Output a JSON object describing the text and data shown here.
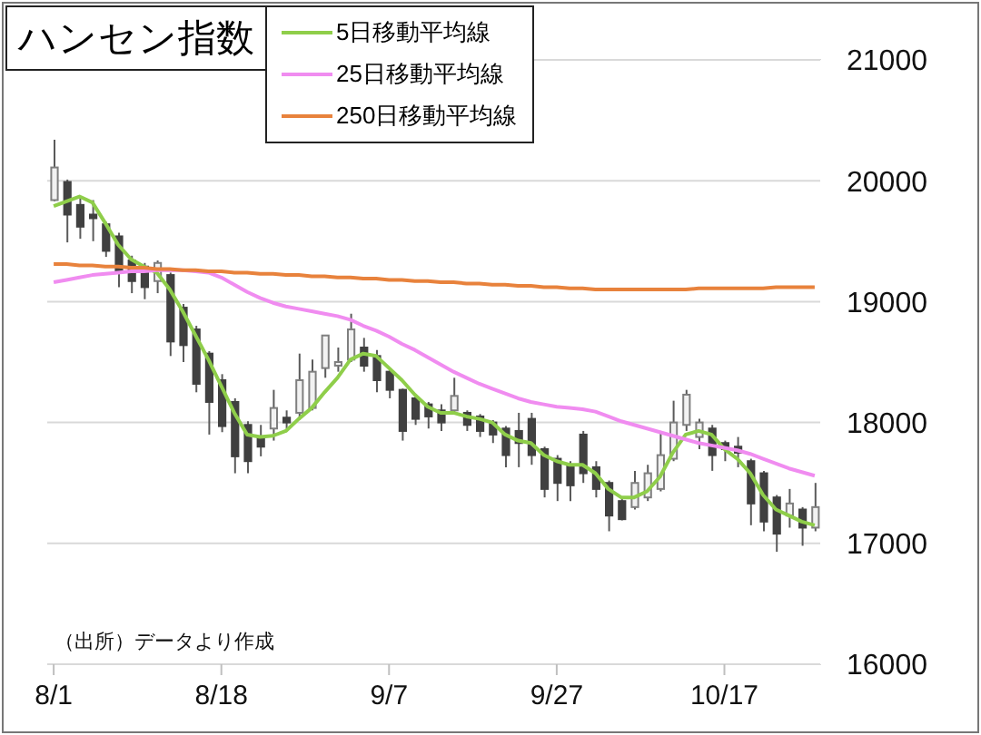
{
  "chart_data": {
    "type": "candlestick",
    "title": "ハンセン指数",
    "categories": [
      "8/1",
      null,
      null,
      null,
      null,
      null,
      null,
      null,
      null,
      null,
      null,
      null,
      null,
      "8/18",
      null,
      null,
      null,
      null,
      null,
      null,
      null,
      null,
      null,
      null,
      null,
      null,
      "9/7",
      null,
      null,
      null,
      null,
      null,
      null,
      null,
      null,
      null,
      null,
      null,
      null,
      "9/27",
      null,
      null,
      null,
      null,
      null,
      null,
      null,
      null,
      null,
      null,
      null,
      null,
      "10/17",
      null,
      null,
      null,
      null,
      null,
      null,
      null
    ],
    "ohlc": [
      [
        19840,
        20340,
        19830,
        20110
      ],
      [
        19990,
        20010,
        19490,
        19720
      ],
      [
        19800,
        19870,
        19520,
        19620
      ],
      [
        19720,
        19840,
        19500,
        19690
      ],
      [
        19640,
        19660,
        19370,
        19420
      ],
      [
        19540,
        19570,
        19120,
        19240
      ],
      [
        19340,
        19380,
        19070,
        19170
      ],
      [
        19290,
        19320,
        19020,
        19120
      ],
      [
        19170,
        19340,
        19070,
        19320
      ],
      [
        19220,
        19240,
        18550,
        18670
      ],
      [
        18950,
        18980,
        18500,
        18640
      ],
      [
        18770,
        18800,
        18250,
        18320
      ],
      [
        18570,
        18590,
        17900,
        18170
      ],
      [
        18350,
        18400,
        17920,
        17970
      ],
      [
        18170,
        18200,
        17580,
        17720
      ],
      [
        17980,
        18010,
        17580,
        17680
      ],
      [
        17880,
        17980,
        17720,
        17800
      ],
      [
        17950,
        18270,
        17850,
        18120
      ],
      [
        18040,
        18100,
        17950,
        18000
      ],
      [
        18080,
        18570,
        18020,
        18350
      ],
      [
        18120,
        18520,
        18100,
        18420
      ],
      [
        18450,
        18720,
        18370,
        18720
      ],
      [
        18470,
        18620,
        18420,
        18500
      ],
      [
        18520,
        18900,
        18500,
        18770
      ],
      [
        18620,
        18700,
        18420,
        18470
      ],
      [
        18550,
        18600,
        18250,
        18350
      ],
      [
        18420,
        18450,
        18200,
        18270
      ],
      [
        18270,
        18280,
        17850,
        17930
      ],
      [
        18200,
        18220,
        17980,
        18030
      ],
      [
        18150,
        18170,
        17950,
        18050
      ],
      [
        18100,
        18150,
        17930,
        18000
      ],
      [
        18100,
        18370,
        18080,
        18220
      ],
      [
        18080,
        18100,
        17930,
        17980
      ],
      [
        18050,
        18070,
        17880,
        17930
      ],
      [
        18000,
        18020,
        17830,
        17900
      ],
      [
        17950,
        17970,
        17630,
        17730
      ],
      [
        17930,
        18080,
        17630,
        17830
      ],
      [
        18030,
        18080,
        17650,
        17730
      ],
      [
        17780,
        17800,
        17380,
        17450
      ],
      [
        17700,
        17730,
        17350,
        17500
      ],
      [
        17650,
        17680,
        17350,
        17480
      ],
      [
        17900,
        17930,
        17500,
        17580
      ],
      [
        17630,
        17680,
        17380,
        17450
      ],
      [
        17500,
        17520,
        17100,
        17230
      ],
      [
        17350,
        17380,
        17190,
        17200
      ],
      [
        17300,
        17600,
        17280,
        17500
      ],
      [
        17380,
        17650,
        17350,
        17580
      ],
      [
        17450,
        17930,
        17430,
        17730
      ],
      [
        17700,
        18180,
        17680,
        18000
      ],
      [
        17980,
        18270,
        17930,
        18230
      ],
      [
        17880,
        18030,
        17780,
        18000
      ],
      [
        17950,
        17980,
        17600,
        17730
      ],
      [
        17830,
        17850,
        17680,
        17780
      ],
      [
        17800,
        17880,
        17630,
        17750
      ],
      [
        17680,
        17700,
        17150,
        17330
      ],
      [
        17580,
        17600,
        17100,
        17180
      ],
      [
        17380,
        17400,
        16930,
        17080
      ],
      [
        17230,
        17450,
        17130,
        17330
      ],
      [
        17280,
        17300,
        16980,
        17130
      ],
      [
        17130,
        17500,
        17100,
        17300
      ]
    ],
    "series": [
      {
        "name": "5日移動平均線",
        "type": "line",
        "color": "#8fce4a",
        "values": [
          19790,
          19830,
          19870,
          19820,
          19650,
          19470,
          19350,
          19290,
          19240,
          19100,
          18920,
          18720,
          18520,
          18300,
          18080,
          17900,
          17880,
          17890,
          17930,
          18030,
          18120,
          18250,
          18370,
          18520,
          18570,
          18550,
          18450,
          18350,
          18230,
          18130,
          18080,
          18080,
          18050,
          18030,
          18000,
          17900,
          17850,
          17830,
          17730,
          17680,
          17650,
          17650,
          17580,
          17450,
          17380,
          17380,
          17430,
          17550,
          17750,
          17900,
          17930,
          17900,
          17780,
          17700,
          17580,
          17400,
          17280,
          17230,
          17180,
          17150
        ]
      },
      {
        "name": "25日移動平均線",
        "type": "line",
        "color": "#f08cf0",
        "values": [
          19160,
          19180,
          19200,
          19220,
          19230,
          19240,
          19250,
          19250,
          19260,
          19260,
          19260,
          19250,
          19240,
          19200,
          19140,
          19080,
          19030,
          18990,
          18960,
          18940,
          18920,
          18900,
          18880,
          18850,
          18800,
          18760,
          18710,
          18650,
          18600,
          18540,
          18480,
          18420,
          18370,
          18320,
          18280,
          18240,
          18200,
          18170,
          18150,
          18130,
          18120,
          18110,
          18090,
          18050,
          18010,
          17980,
          17950,
          17920,
          17890,
          17860,
          17830,
          17810,
          17790,
          17770,
          17740,
          17700,
          17660,
          17620,
          17590,
          17560
        ]
      },
      {
        "name": "250日移動平均線",
        "type": "line",
        "color": "#e8823c",
        "values": [
          19310,
          19310,
          19300,
          19300,
          19290,
          19290,
          19280,
          19280,
          19270,
          19270,
          19260,
          19260,
          19250,
          19250,
          19240,
          19240,
          19230,
          19230,
          19220,
          19220,
          19210,
          19210,
          19200,
          19200,
          19190,
          19190,
          19180,
          19180,
          19170,
          19170,
          19160,
          19160,
          19150,
          19150,
          19140,
          19140,
          19130,
          19130,
          19120,
          19120,
          19110,
          19110,
          19100,
          19100,
          19100,
          19100,
          19100,
          19100,
          19100,
          19100,
          19110,
          19110,
          19110,
          19110,
          19110,
          19110,
          19120,
          19120,
          19120,
          19120
        ]
      }
    ],
    "ylim": [
      16000,
      21000
    ],
    "yticks": [
      16000,
      17000,
      18000,
      19000,
      20000,
      21000
    ],
    "grid": "y",
    "legend": "top",
    "annotations": [
      "（出所）データより作成"
    ]
  }
}
